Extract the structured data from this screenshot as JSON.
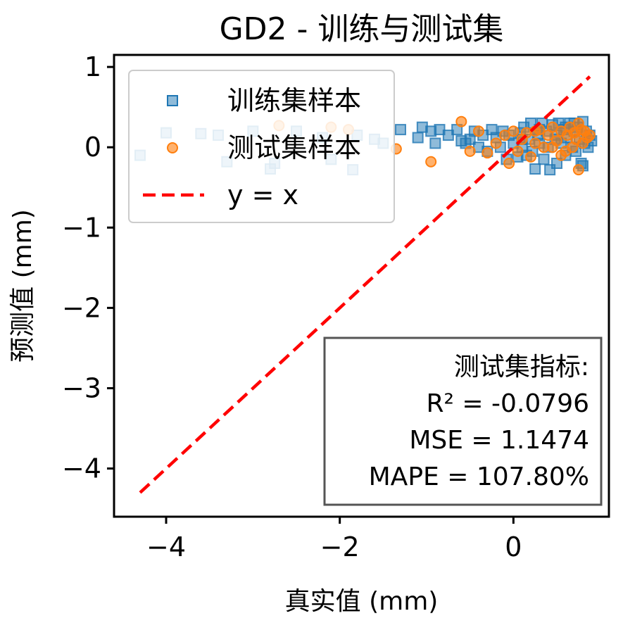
{
  "chart_data": {
    "type": "scatter",
    "title": "GD2 - 训练与测试集",
    "xlabel": "真实值 (mm)",
    "ylabel": "预测值 (mm)",
    "xlim": [
      -4.6,
      1.1
    ],
    "ylim": [
      -4.6,
      1.15
    ],
    "xticks": [
      -4,
      -2,
      0
    ],
    "xtick_labels": [
      "−4",
      "−2",
      "0"
    ],
    "yticks": [
      1,
      0,
      -1,
      -2,
      -3,
      -4
    ],
    "ytick_labels": [
      "1",
      "0",
      "−1",
      "−2",
      "−3",
      "−4"
    ],
    "grid": false,
    "legend_position": "top-left",
    "legend": [
      "训练集样本",
      "测试集样本",
      "y = x"
    ],
    "series": [
      {
        "name": "训练集样本",
        "marker": "square",
        "color": "#1f77b4",
        "points": [
          [
            -4.3,
            -0.1
          ],
          [
            -4.0,
            0.18
          ],
          [
            -3.6,
            0.17
          ],
          [
            -3.4,
            0.15
          ],
          [
            -3.3,
            -0.18
          ],
          [
            -3.0,
            0.2
          ],
          [
            -2.8,
            -0.27
          ],
          [
            -2.75,
            -0.2
          ],
          [
            -2.5,
            0.2
          ],
          [
            -2.2,
            0.12
          ],
          [
            -2.1,
            -0.15
          ],
          [
            -1.85,
            -0.28
          ],
          [
            -1.8,
            0.15
          ],
          [
            -1.6,
            0.1
          ],
          [
            -1.5,
            0.05
          ],
          [
            -1.3,
            0.22
          ],
          [
            -1.1,
            0.12
          ],
          [
            -1.05,
            0.25
          ],
          [
            -0.95,
            0.2
          ],
          [
            -0.85,
            0.22
          ],
          [
            -0.75,
            0.15
          ],
          [
            -0.65,
            0.22
          ],
          [
            -0.55,
            0.05
          ],
          [
            -0.5,
            0.1
          ],
          [
            -0.45,
            0.2
          ],
          [
            -0.4,
            0.0
          ],
          [
            -0.35,
            0.15
          ],
          [
            -0.3,
            -0.05
          ],
          [
            -0.25,
            0.22
          ],
          [
            -0.2,
            0.12
          ],
          [
            -0.15,
            0.0
          ],
          [
            -0.12,
            0.2
          ],
          [
            -0.08,
            -0.15
          ],
          [
            -0.05,
            0.15
          ],
          [
            0.0,
            0.05
          ],
          [
            0.05,
            -0.12
          ],
          [
            0.08,
            0.18
          ],
          [
            0.1,
            0.0
          ],
          [
            0.12,
            0.25
          ],
          [
            0.15,
            -0.1
          ],
          [
            0.18,
            0.1
          ],
          [
            0.2,
            0.3
          ],
          [
            0.22,
            -0.05
          ],
          [
            0.25,
            -0.27
          ],
          [
            0.28,
            0.15
          ],
          [
            0.3,
            0.05
          ],
          [
            0.33,
            0.3
          ],
          [
            0.35,
            -0.15
          ],
          [
            0.38,
            0.2
          ],
          [
            0.4,
            0.0
          ],
          [
            0.42,
            -0.28
          ],
          [
            0.45,
            0.28
          ],
          [
            0.48,
            0.1
          ],
          [
            0.5,
            -0.2
          ],
          [
            0.52,
            0.3
          ],
          [
            0.55,
            0.05
          ],
          [
            0.58,
            0.22
          ],
          [
            0.6,
            -0.1
          ],
          [
            0.62,
            0.12
          ],
          [
            0.65,
            0.3
          ],
          [
            0.68,
            0.0
          ],
          [
            0.7,
            0.2
          ],
          [
            0.72,
            -0.05
          ],
          [
            0.74,
            0.25
          ],
          [
            0.76,
            0.1
          ],
          [
            0.78,
            -0.2
          ],
          [
            0.8,
            0.32
          ],
          [
            0.82,
            0.05
          ],
          [
            0.84,
            0.2
          ],
          [
            0.86,
            0.0
          ],
          [
            0.88,
            0.15
          ],
          [
            0.9,
            0.08
          ],
          [
            0.8,
            -0.23
          ],
          [
            0.7,
            0.3
          ],
          [
            0.6,
            0.25
          ],
          [
            0.5,
            0.15
          ],
          [
            0.3,
            0.22
          ],
          [
            0.1,
            0.1
          ],
          [
            -0.6,
            0.08
          ],
          [
            -0.9,
            0.05
          ]
        ]
      },
      {
        "name": "测试集样本",
        "marker": "circle",
        "color": "#ff7f0e",
        "points": [
          [
            -2.7,
            0.27
          ],
          [
            -2.1,
            0.25
          ],
          [
            -1.9,
            0.22
          ],
          [
            -1.35,
            -0.02
          ],
          [
            -0.95,
            -0.18
          ],
          [
            -0.6,
            0.32
          ],
          [
            -0.5,
            -0.05
          ],
          [
            -0.4,
            0.2
          ],
          [
            -0.3,
            -0.07
          ],
          [
            -0.2,
            0.05
          ],
          [
            -0.1,
            0.15
          ],
          [
            -0.05,
            -0.2
          ],
          [
            0.0,
            0.2
          ],
          [
            0.05,
            -0.05
          ],
          [
            0.1,
            0.1
          ],
          [
            0.15,
            0.18
          ],
          [
            0.2,
            -0.12
          ],
          [
            0.25,
            0.05
          ],
          [
            0.3,
            0.22
          ],
          [
            0.35,
            0.0
          ],
          [
            0.4,
            0.15
          ],
          [
            0.45,
            0.25
          ],
          [
            0.5,
            0.08
          ],
          [
            0.55,
            0.2
          ],
          [
            0.6,
            -0.05
          ],
          [
            0.62,
            0.15
          ],
          [
            0.65,
            0.25
          ],
          [
            0.68,
            0.0
          ],
          [
            0.7,
            0.18
          ],
          [
            0.72,
            0.1
          ],
          [
            0.75,
            -0.28
          ],
          [
            0.78,
            0.22
          ],
          [
            0.8,
            0.05
          ],
          [
            0.82,
            0.2
          ],
          [
            0.85,
            0.12
          ],
          [
            0.88,
            0.15
          ],
          [
            0.75,
            0.3
          ],
          [
            0.55,
            -0.1
          ],
          [
            0.45,
            0.0
          ],
          [
            0.25,
            0.2
          ]
        ]
      },
      {
        "name": "y = x",
        "type": "line",
        "style": "dashed",
        "color": "#ff0000",
        "points": [
          [
            -4.3,
            -4.3
          ],
          [
            0.88,
            0.88
          ]
        ]
      }
    ],
    "annotation": {
      "position": "bottom-right",
      "lines": [
        "测试集指标:",
        "R² = -0.0796",
        "MSE = 1.1474",
        "MAPE = 107.80%"
      ]
    }
  }
}
